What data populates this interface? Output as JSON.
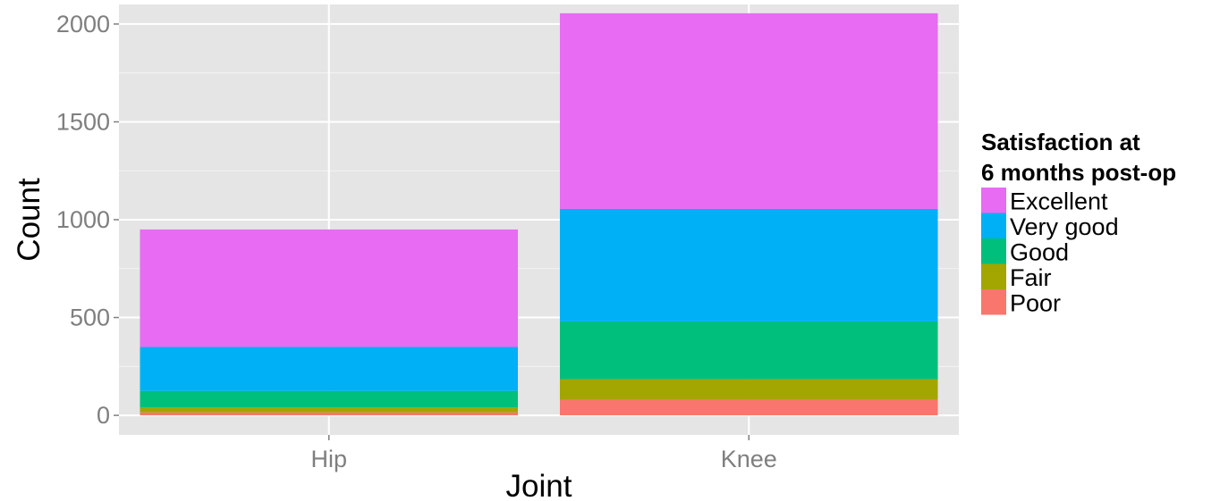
{
  "chart_data": {
    "type": "bar",
    "stacked": true,
    "categories": [
      "Hip",
      "Knee"
    ],
    "series": [
      {
        "name": "Poor",
        "color": "#F8766D",
        "values": [
          15,
          80
        ]
      },
      {
        "name": "Fair",
        "color": "#A3A500",
        "values": [
          25,
          105
        ]
      },
      {
        "name": "Good",
        "color": "#00BF7D",
        "values": [
          85,
          295
        ]
      },
      {
        "name": "Very good",
        "color": "#00B0F6",
        "values": [
          225,
          575
        ]
      },
      {
        "name": "Excellent",
        "color": "#E76BF3",
        "values": [
          600,
          1000
        ]
      }
    ],
    "xlabel": "Joint",
    "ylabel": "Count",
    "ylim": [
      -100,
      2100
    ],
    "yticks": [
      0,
      500,
      1000,
      1500,
      2000
    ],
    "grid": true,
    "legend": {
      "title_lines": [
        "Satisfaction at",
        "6 months post-op"
      ],
      "position": "right",
      "order": [
        "Excellent",
        "Very good",
        "Good",
        "Fair",
        "Poor"
      ]
    },
    "panel_color": "#E5E5E5",
    "grid_color": "#FFFFFF"
  }
}
